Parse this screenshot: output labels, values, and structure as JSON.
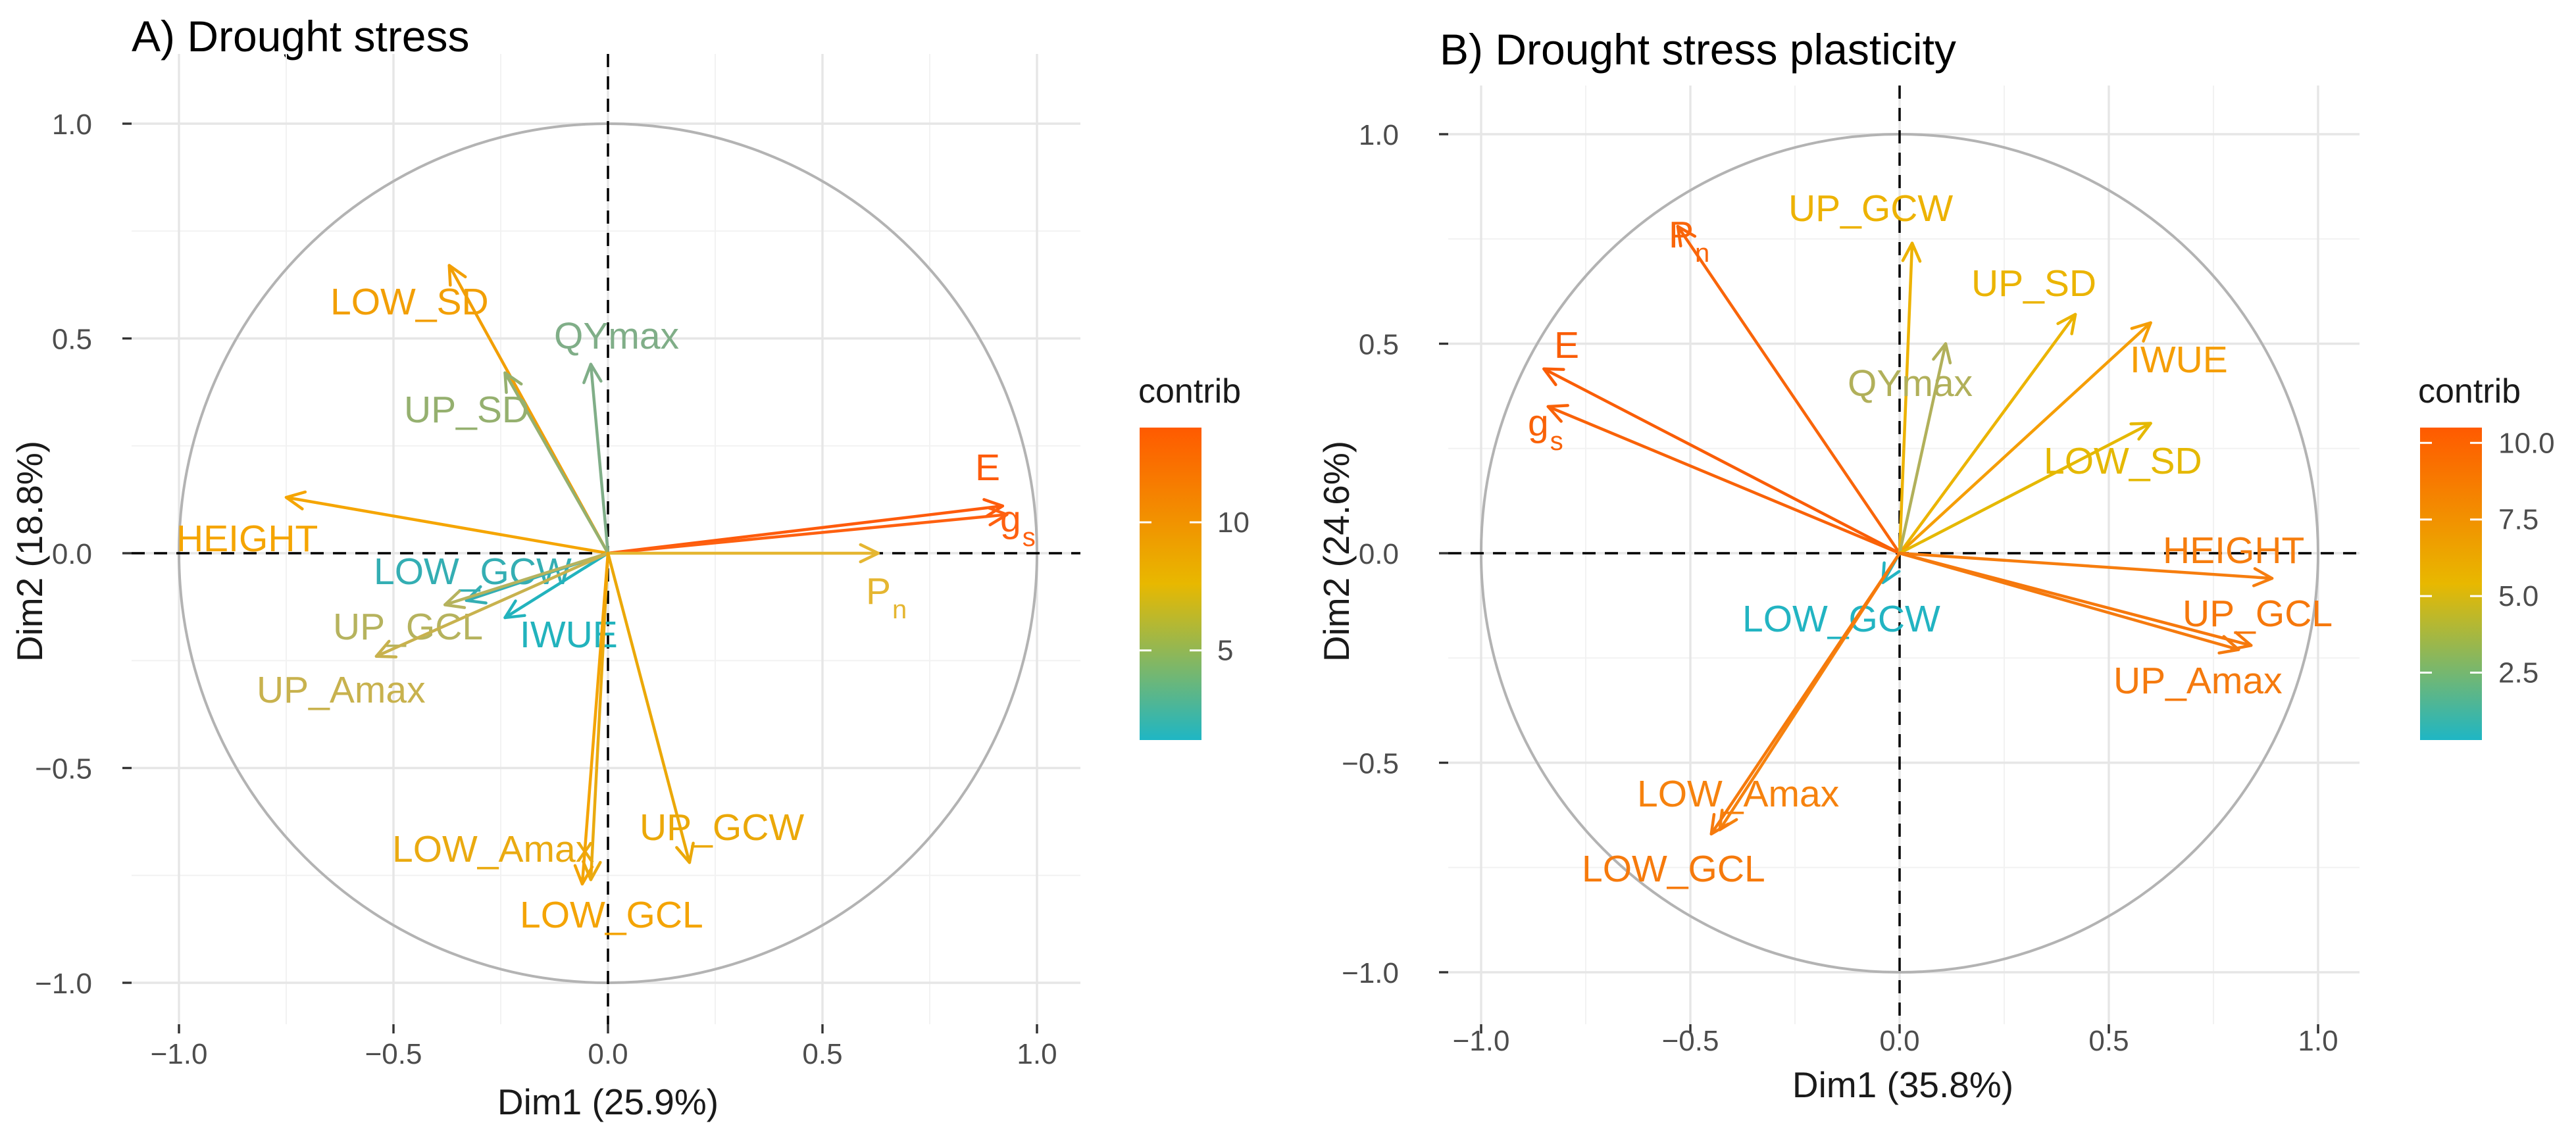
{
  "chart_data": [
    {
      "type": "pca-variable-correlation-circle",
      "title": "A) Drought stress",
      "xlabel": "Dim1 (25.9%)",
      "ylabel": "Dim2 (18.8%)",
      "xlim": [
        -1.0,
        1.0
      ],
      "ylim": [
        -1.0,
        1.0
      ],
      "xticks": [
        "−1.0",
        "−0.5",
        "0.0",
        "0.5",
        "1.0"
      ],
      "yticks": [
        "−1.0",
        "−0.5",
        "0.0",
        "0.5",
        "1.0"
      ],
      "legend": {
        "title": "contrib",
        "min": 1.5,
        "max": 13.7,
        "ticks": [
          {
            "value": 5,
            "label": "5"
          },
          {
            "value": 10,
            "label": "10"
          }
        ],
        "colors": [
          "#1fb6c4",
          "#e8b800",
          "#ff5a00"
        ],
        "placement": "right"
      },
      "variables": [
        {
          "name": "E",
          "x": 0.92,
          "y": 0.11,
          "contrib": 13.7,
          "color": "#fe5b0c"
        },
        {
          "name": "g",
          "sub": "s",
          "x": 0.93,
          "y": 0.09,
          "contrib": 13.4,
          "color": "#fe6010"
        },
        {
          "name": "P",
          "sub": "n",
          "x": 0.63,
          "y": 0.0,
          "contrib": 8.3,
          "color": "#e5b631"
        },
        {
          "name": "HEIGHT",
          "x": -0.75,
          "y": 0.13,
          "contrib": 10.1,
          "color": "#f5a500"
        },
        {
          "name": "LOW_SD",
          "x": -0.37,
          "y": 0.67,
          "contrib": 10.4,
          "color": "#f29f05"
        },
        {
          "name": "QYmax",
          "x": -0.04,
          "y": 0.44,
          "contrib": 4.0,
          "color": "#80ae88"
        },
        {
          "name": "UP_SD",
          "x": -0.24,
          "y": 0.42,
          "contrib": 4.9,
          "color": "#95b06f"
        },
        {
          "name": "LOW_GCW",
          "x": -0.33,
          "y": -0.11,
          "contrib": 2.6,
          "color": "#34aeb3"
        },
        {
          "name": "UP_GCL",
          "x": -0.38,
          "y": -0.12,
          "contrib": 5.7,
          "color": "#b6b35e"
        },
        {
          "name": "IWUE",
          "x": -0.24,
          "y": -0.15,
          "contrib": 2.2,
          "color": "#22b3bd"
        },
        {
          "name": "UP_Amax",
          "x": -0.54,
          "y": -0.24,
          "contrib": 6.5,
          "color": "#c8b24e"
        },
        {
          "name": "LOW_Amax",
          "x": -0.04,
          "y": -0.76,
          "contrib": 9.5,
          "color": "#eaaa10"
        },
        {
          "name": "LOW_GCL",
          "x": -0.06,
          "y": -0.77,
          "contrib": 10.3,
          "color": "#f4a405"
        },
        {
          "name": "UP_GCW",
          "x": 0.19,
          "y": -0.72,
          "contrib": 9.9,
          "color": "#eba808"
        }
      ]
    },
    {
      "type": "pca-variable-correlation-circle",
      "title": "B) Drought stress plasticity",
      "xlabel": "Dim1 (35.8%)",
      "ylabel": "Dim2 (24.6%)",
      "xlim": [
        -1.0,
        1.0
      ],
      "ylim": [
        -1.0,
        1.0
      ],
      "xticks": [
        "−1.0",
        "−0.5",
        "0.0",
        "0.5",
        "1.0"
      ],
      "yticks": [
        "−1.0",
        "−0.5",
        "0.0",
        "0.5",
        "1.0"
      ],
      "legend": {
        "title": "contrib",
        "min": 0.3,
        "max": 10.5,
        "ticks": [
          {
            "value": 2.5,
            "label": "2.5"
          },
          {
            "value": 5.0,
            "label": "5.0"
          },
          {
            "value": 7.5,
            "label": "7.5"
          },
          {
            "value": 10.0,
            "label": "10.0"
          }
        ],
        "colors": [
          "#1fb6c4",
          "#e8b800",
          "#ff5a00"
        ],
        "placement": "right"
      },
      "variables": [
        {
          "name": "E",
          "x": -0.85,
          "y": 0.44,
          "contrib": 10.2,
          "color": "#fa5d06"
        },
        {
          "name": "g",
          "sub": "s",
          "x": -0.84,
          "y": 0.35,
          "contrib": 10.0,
          "color": "#f96208"
        },
        {
          "name": "P",
          "sub": "n",
          "x": -0.53,
          "y": 0.78,
          "contrib": 10.1,
          "color": "#f9650a"
        },
        {
          "name": "UP_GCW",
          "x": 0.03,
          "y": 0.74,
          "contrib": 6.0,
          "color": "#edb200"
        },
        {
          "name": "UP_SD",
          "x": 0.42,
          "y": 0.57,
          "contrib": 5.6,
          "color": "#ebb400"
        },
        {
          "name": "IWUE",
          "x": 0.6,
          "y": 0.55,
          "contrib": 7.4,
          "color": "#f59e06"
        },
        {
          "name": "QYmax",
          "x": 0.11,
          "y": 0.5,
          "contrib": 3.4,
          "color": "#b1b05a"
        },
        {
          "name": "LOW_SD",
          "x": 0.6,
          "y": 0.31,
          "contrib": 5.3,
          "color": "#e5b800"
        },
        {
          "name": "HEIGHT",
          "x": 0.89,
          "y": -0.06,
          "contrib": 8.4,
          "color": "#f67d0e"
        },
        {
          "name": "UP_GCL",
          "x": 0.84,
          "y": -0.22,
          "contrib": 8.8,
          "color": "#f6780c"
        },
        {
          "name": "UP_Amax",
          "x": 0.81,
          "y": -0.23,
          "contrib": 8.6,
          "color": "#f57a0e"
        },
        {
          "name": "LOW_GCW",
          "x": -0.04,
          "y": -0.07,
          "contrib": 0.4,
          "color": "#22b4c2"
        },
        {
          "name": "LOW_Amax",
          "x": -0.43,
          "y": -0.66,
          "contrib": 8.5,
          "color": "#f6820e"
        },
        {
          "name": "LOW_GCL",
          "x": -0.45,
          "y": -0.67,
          "contrib": 8.9,
          "color": "#f67a0c"
        }
      ]
    }
  ]
}
